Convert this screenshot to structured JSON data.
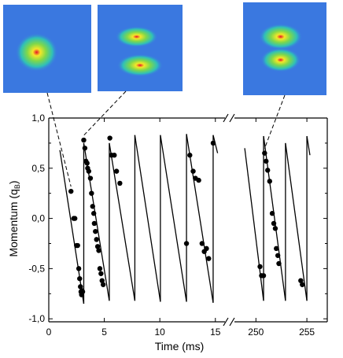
{
  "chart_data": {
    "type": "scatter",
    "title": "",
    "xlabel": "Time (ms)",
    "ylabel": "Momentum (q",
    "ylabel_sub": "B",
    "ylabel_close": ")",
    "xlim_left": [
      0,
      17
    ],
    "xlim_right": [
      248.2,
      257
    ],
    "axis_break_near": [
      16,
      248
    ],
    "ylim": [
      -1.03,
      1.0
    ],
    "grid": false,
    "legend": "none",
    "xticks_left": [
      {
        "v": 0,
        "label": "0"
      },
      {
        "v": 5,
        "label": "5"
      },
      {
        "v": 10,
        "label": "10"
      },
      {
        "v": 15,
        "label": "15"
      }
    ],
    "xticks_right": [
      {
        "v": 250,
        "label": "250"
      },
      {
        "v": 255,
        "label": "255"
      }
    ],
    "yticks": [
      {
        "v": 1.0,
        "label": "1,0"
      },
      {
        "v": 0.5,
        "label": "0,5"
      },
      {
        "v": 0.0,
        "label": "0,0"
      },
      {
        "v": -0.5,
        "label": "-0,5"
      },
      {
        "v": -1.0,
        "label": "-1,0"
      }
    ],
    "theory_line": {
      "segments_left": [
        [
          [
            1.0,
            0.68
          ],
          [
            3.15,
            -0.85
          ]
        ],
        [
          [
            3.15,
            0.75
          ],
          [
            5.45,
            -0.82
          ]
        ],
        [
          [
            5.45,
            0.75
          ],
          [
            7.75,
            -0.82
          ]
        ],
        [
          [
            7.75,
            0.83
          ],
          [
            10.05,
            -0.83
          ]
        ],
        [
          [
            10.05,
            0.83
          ],
          [
            12.4,
            -0.83
          ]
        ],
        [
          [
            12.4,
            0.84
          ],
          [
            14.8,
            -0.84
          ]
        ],
        [
          [
            14.8,
            0.83
          ],
          [
            15.2,
            0.65
          ]
        ]
      ],
      "segments_right": [
        [
          [
            248.9,
            0.7
          ],
          [
            250.75,
            -0.82
          ]
        ],
        [
          [
            250.75,
            0.82
          ],
          [
            252.9,
            -0.82
          ]
        ],
        [
          [
            252.9,
            0.75
          ],
          [
            255.0,
            -0.82
          ]
        ],
        [
          [
            255.0,
            0.82
          ],
          [
            255.3,
            0.63
          ]
        ]
      ]
    },
    "points_left": [
      [
        2.0,
        0.27
      ],
      [
        2.25,
        0.0
      ],
      [
        2.35,
        0.0
      ],
      [
        2.5,
        -0.27
      ],
      [
        2.6,
        -0.27
      ],
      [
        2.7,
        -0.5
      ],
      [
        2.78,
        -0.6
      ],
      [
        2.85,
        -0.68
      ],
      [
        2.9,
        -0.73
      ],
      [
        2.95,
        -0.76
      ],
      [
        3.0,
        -0.72
      ],
      [
        3.05,
        -0.73
      ],
      [
        3.15,
        0.78
      ],
      [
        3.25,
        0.7
      ],
      [
        3.35,
        0.57
      ],
      [
        3.45,
        0.55
      ],
      [
        3.5,
        0.5
      ],
      [
        3.6,
        0.47
      ],
      [
        3.75,
        0.4
      ],
      [
        3.85,
        0.25
      ],
      [
        3.95,
        0.12
      ],
      [
        4.05,
        0.05
      ],
      [
        4.1,
        -0.05
      ],
      [
        4.2,
        -0.13
      ],
      [
        4.3,
        -0.21
      ],
      [
        4.4,
        -0.28
      ],
      [
        4.5,
        -0.32
      ],
      [
        4.6,
        -0.5
      ],
      [
        4.7,
        -0.55
      ],
      [
        4.8,
        -0.62
      ],
      [
        4.9,
        -0.66
      ],
      [
        5.5,
        0.8
      ],
      [
        5.65,
        0.63
      ],
      [
        5.9,
        0.63
      ],
      [
        6.1,
        0.47
      ],
      [
        6.4,
        0.35
      ],
      [
        12.4,
        -0.25
      ],
      [
        12.7,
        0.63
      ],
      [
        13.0,
        0.47
      ],
      [
        13.2,
        0.4
      ],
      [
        13.5,
        0.38
      ],
      [
        13.8,
        -0.25
      ],
      [
        14.0,
        -0.33
      ],
      [
        14.2,
        -0.3
      ],
      [
        14.4,
        -0.4
      ],
      [
        14.8,
        0.75
      ]
    ],
    "points_right": [
      [
        250.4,
        -0.48
      ],
      [
        250.55,
        -0.57
      ],
      [
        250.75,
        -0.57
      ],
      [
        250.85,
        0.65
      ],
      [
        251.0,
        0.57
      ],
      [
        251.15,
        0.48
      ],
      [
        251.35,
        0.37
      ],
      [
        251.6,
        0.05
      ],
      [
        251.75,
        -0.05
      ],
      [
        251.9,
        -0.1
      ],
      [
        252.0,
        -0.3
      ],
      [
        252.15,
        -0.37
      ],
      [
        252.25,
        -0.45
      ],
      [
        254.4,
        -0.62
      ],
      [
        254.55,
        -0.66
      ]
    ]
  },
  "insets": [
    {
      "clouds": [
        {
          "fx": 0.38,
          "fy": 0.54,
          "rx": 0.24,
          "ry": 0.22
        }
      ]
    },
    {
      "clouds": [
        {
          "fx": 0.46,
          "fy": 0.37,
          "rx": 0.25,
          "ry": 0.12
        },
        {
          "fx": 0.5,
          "fy": 0.7,
          "rx": 0.27,
          "ry": 0.13
        }
      ]
    },
    {
      "clouds": [
        {
          "fx": 0.45,
          "fy": 0.37,
          "rx": 0.26,
          "ry": 0.14
        },
        {
          "fx": 0.45,
          "fy": 0.62,
          "rx": 0.24,
          "ry": 0.13
        }
      ]
    }
  ],
  "colors": {
    "inset_bg": "#3a78e0",
    "line": "#000000",
    "points": "#000000"
  }
}
